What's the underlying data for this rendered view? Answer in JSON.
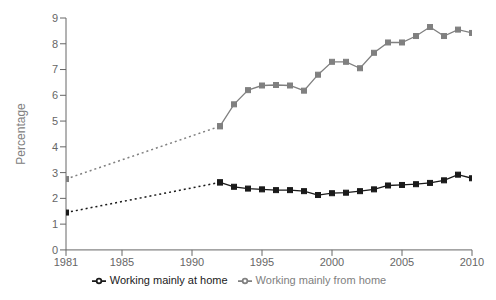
{
  "chart_data": {
    "type": "line",
    "ylabel": "Percentage",
    "x": [
      1981,
      1992,
      1993,
      1994,
      1995,
      1996,
      1997,
      1998,
      1999,
      2000,
      2001,
      2002,
      2003,
      2004,
      2005,
      2006,
      2007,
      2008,
      2009,
      2010
    ],
    "xlim": [
      1981,
      2010
    ],
    "xticks": [
      1981,
      1985,
      1990,
      1995,
      2000,
      2005,
      2010
    ],
    "ylim": [
      0,
      9
    ],
    "yticks": [
      0,
      1,
      2,
      3,
      4,
      5,
      6,
      7,
      8,
      9
    ],
    "grid": false,
    "legend": "bottom",
    "series": [
      {
        "color": "#1a1a1a",
        "line_style": "dotted",
        "marker": "square",
        "values": [
          1.45,
          2.62,
          null,
          null,
          null,
          null,
          null,
          null,
          null,
          null,
          null,
          null,
          null,
          null,
          null,
          null,
          null,
          null,
          null,
          null
        ]
      },
      {
        "color": "#808080",
        "line_style": "dotted",
        "marker": "square",
        "values": [
          2.75,
          4.8,
          null,
          null,
          null,
          null,
          null,
          null,
          null,
          null,
          null,
          null,
          null,
          null,
          null,
          null,
          null,
          null,
          null,
          null
        ]
      },
      {
        "name": "Working mainly at home",
        "color": "#1a1a1a",
        "line_style": "solid",
        "marker": "square",
        "values": [
          null,
          2.62,
          2.45,
          2.38,
          2.35,
          2.32,
          2.32,
          2.28,
          2.13,
          2.2,
          2.22,
          2.28,
          2.35,
          2.5,
          2.52,
          2.55,
          2.6,
          2.7,
          2.92,
          2.78
        ]
      },
      {
        "name": "Working mainly from home",
        "color": "#808080",
        "line_style": "solid",
        "marker": "square",
        "values": [
          null,
          4.8,
          5.65,
          6.2,
          6.38,
          6.4,
          6.38,
          6.18,
          6.8,
          7.3,
          7.3,
          7.05,
          7.65,
          8.05,
          8.05,
          8.3,
          8.65,
          8.3,
          8.55,
          8.42
        ]
      }
    ]
  }
}
